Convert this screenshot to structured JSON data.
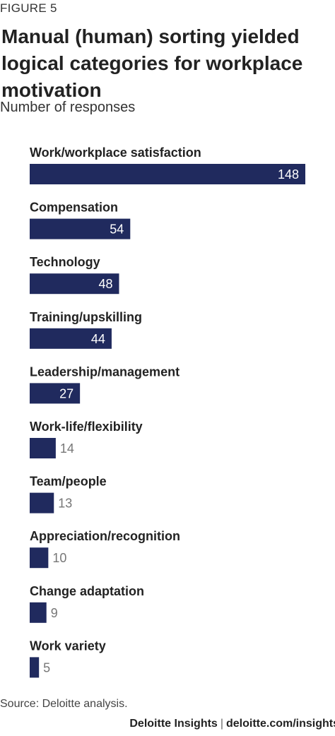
{
  "figure_label": "FIGURE 5",
  "footer": {
    "brand": "Deloitte Insights",
    "separator": "|",
    "url": "deloitte.com/insights"
  },
  "source": "Source: Deloitte analysis.",
  "colors": {
    "bar": "#202a5e",
    "value_inside": "#ffffff",
    "value_outside": "#777777"
  },
  "chart_data": {
    "type": "bar",
    "orientation": "horizontal",
    "title": "Manual (human) sorting yielded logical categories for workplace motivation",
    "subtitle": "Number of responses",
    "xlabel": "",
    "ylabel": "",
    "grid": false,
    "xlim": [
      0,
      148
    ],
    "categories": [
      "Work/workplace satisfaction",
      "Compensation",
      "Technology",
      "Training/upskilling",
      "Leadership/management",
      "Work-life/flexibility",
      "Team/people",
      "Appreciation/recognition",
      "Change adaptation",
      "Work variety"
    ],
    "values": [
      148,
      54,
      48,
      44,
      27,
      14,
      13,
      10,
      9,
      5
    ]
  }
}
